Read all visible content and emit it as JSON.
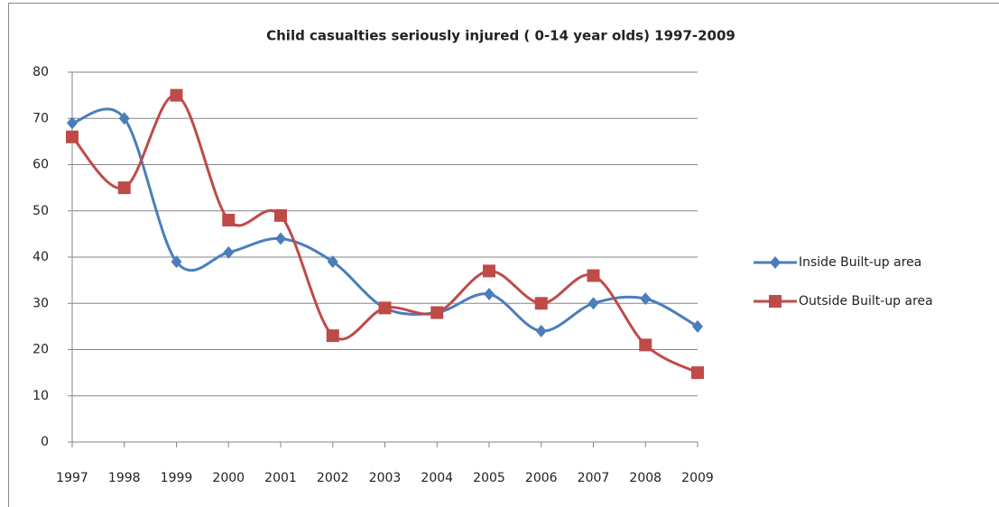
{
  "chart_data": {
    "type": "line",
    "title": "Child casualties seriously injured ( 0-14 year olds) 1997-2009",
    "categories": [
      "1997",
      "1998",
      "1999",
      "2000",
      "2001",
      "2002",
      "2003",
      "2004",
      "2005",
      "2006",
      "2007",
      "2008",
      "2009"
    ],
    "series": [
      {
        "name": "Inside Built-up area",
        "color": "#4a7ebb",
        "marker": "diamond",
        "values": [
          69,
          70,
          39,
          41,
          44,
          39,
          29,
          28,
          32,
          24,
          30,
          31,
          25
        ]
      },
      {
        "name": "Outside Built-up area",
        "color": "#be4b48",
        "marker": "square",
        "values": [
          66,
          55,
          75,
          48,
          49,
          23,
          29,
          28,
          37,
          30,
          36,
          21,
          15
        ]
      }
    ],
    "ylim": [
      0,
      80
    ],
    "yticks": [
      0,
      10,
      20,
      30,
      40,
      50,
      60,
      70,
      80
    ],
    "grid": true,
    "smooth": true,
    "legend": "right"
  }
}
